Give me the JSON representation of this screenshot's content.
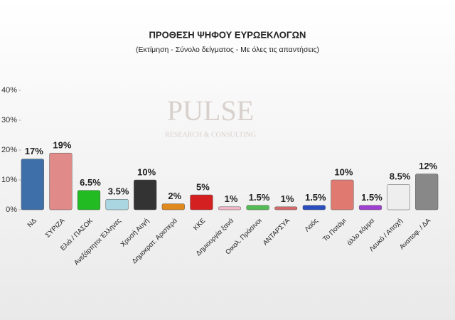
{
  "chart_data": {
    "type": "bar",
    "title": "ΠΡΟΘΕΣΗ ΨΗΦΟΥ ΕΥΡΩΕΚΛΟΓΩΝ",
    "subtitle": "(Εκτίμηση - Σύνολο δείγματος - Με όλες τις απαντήσεις)",
    "watermark": "PULSE",
    "watermark_subtitle": "RESEARCH & CONSULTING",
    "categories": [
      "ΝΔ",
      "ΣΥΡΙΖΑ",
      "Ελιά / ΠΑΣΟΚ",
      "Ανεξάρτητοι Έλληνες",
      "Χρυσή Αυγή",
      "Δημοκρατ. Αριστερά",
      "ΚΚΕ",
      "Δημιουργία ξανά",
      "Οικολ. Πράσινοι",
      "ΑΝΤΑΡΣΥΑ",
      "Λαός",
      "Το Ποτάμι",
      "άλλο κόμμα",
      "Λευκό / Αποχή",
      "Αναποφ. / ΔΑ"
    ],
    "values": [
      17,
      19,
      6.5,
      3.5,
      10,
      2,
      5,
      1,
      1.5,
      1,
      1.5,
      10,
      1.5,
      8.5,
      12
    ],
    "value_labels": [
      "17%",
      "19%",
      "6.5%",
      "3.5%",
      "10%",
      "2%",
      "5%",
      "1%",
      "1.5%",
      "1%",
      "1.5%",
      "10%",
      "1.5%",
      "8.5%",
      "12%"
    ],
    "colors": [
      "#3f6fa8",
      "#e08a8a",
      "#22bb22",
      "#a9d6e0",
      "#333333",
      "#e08a1e",
      "#d42020",
      "#f2b8c8",
      "#55bb55",
      "#d66a6a",
      "#2a4dc0",
      "#e07a70",
      "#a040d0",
      "#eeeeee",
      "#888888"
    ],
    "ylim": [
      0,
      40
    ],
    "yticks": [
      {
        "value": 0,
        "label": "0%"
      },
      {
        "value": 10,
        "label": "10%"
      },
      {
        "value": 20,
        "label": "20%"
      },
      {
        "value": 30,
        "label": "30%"
      },
      {
        "value": 40,
        "label": "40%"
      }
    ],
    "grid": false
  }
}
